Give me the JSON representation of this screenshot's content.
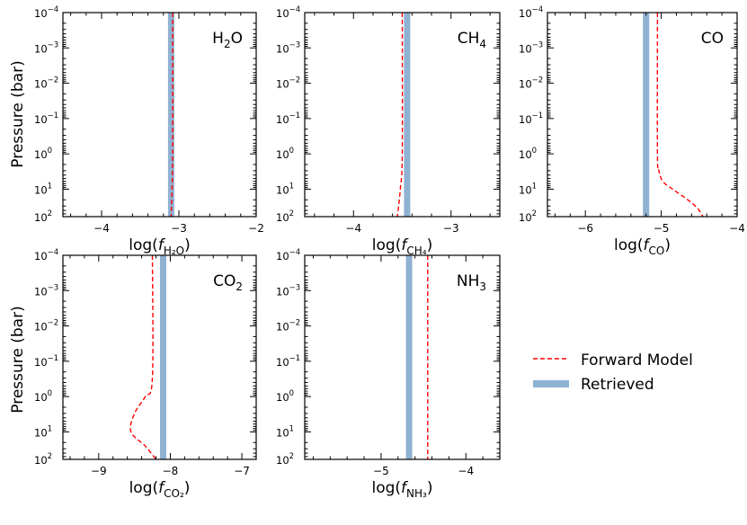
{
  "figure": {
    "ylabel": "Pressure (bar)",
    "legend": {
      "placement": "right",
      "forward_label": "Forward Model",
      "retrieved_label": "Retrieved",
      "forward_color": "#ff0000",
      "retrieved_color": "#8fb1d2"
    }
  },
  "chart_data": [
    {
      "type": "line",
      "species": "H2O",
      "title_main": "H",
      "title_sub": "2",
      "title_tail": "O",
      "xlabel_main": "log(f",
      "xlabel_sub": "H₂O",
      "xlabel_tail": ")",
      "xlim": [
        -4.5,
        -2.0
      ],
      "xticks": [
        -4,
        -3,
        -2
      ],
      "xtick_labels": [
        "−4",
        "−3",
        "−2"
      ],
      "yscale": "log",
      "yinverted": true,
      "ylim": [
        0.0001,
        60
      ],
      "yticks": [
        0.0001,
        0.001,
        0.01,
        0.1,
        1,
        10,
        100
      ],
      "ytick_labels": [
        [
          "10",
          "−4"
        ],
        [
          "10",
          "−3"
        ],
        [
          "10",
          "−2"
        ],
        [
          "10",
          "−1"
        ],
        [
          "10",
          "0"
        ],
        [
          "10",
          "1"
        ],
        [
          "10",
          "2"
        ]
      ],
      "retrieved": -3.1,
      "forward_model": {
        "pressure": [
          0.0001,
          1,
          60
        ],
        "log_abundance": [
          -3.08,
          -3.08,
          -3.1
        ]
      }
    },
    {
      "type": "line",
      "species": "CH4",
      "title_main": "CH",
      "title_sub": "4",
      "title_tail": "",
      "xlabel_main": "log(f",
      "xlabel_sub": "CH₄",
      "xlabel_tail": ")",
      "xlim": [
        -4.5,
        -2.5
      ],
      "xticks": [
        -4,
        -3
      ],
      "xtick_labels": [
        "−4",
        "−3"
      ],
      "yscale": "log",
      "yinverted": true,
      "ylim": [
        0.0001,
        60
      ],
      "yticks": [
        0.0001,
        0.001,
        0.01,
        0.1,
        1,
        10,
        100
      ],
      "ytick_labels": [
        [
          "10",
          "−4"
        ],
        [
          "10",
          "−3"
        ],
        [
          "10",
          "−2"
        ],
        [
          "10",
          "−1"
        ],
        [
          "10",
          "0"
        ],
        [
          "10",
          "1"
        ],
        [
          "10",
          "2"
        ]
      ],
      "retrieved": -3.45,
      "forward_model": {
        "pressure": [
          0.0001,
          1,
          10,
          60
        ],
        "log_abundance": [
          -3.5,
          -3.5,
          -3.52,
          -3.55
        ]
      }
    },
    {
      "type": "line",
      "species": "CO",
      "title_main": "CO",
      "title_sub": "",
      "title_tail": "",
      "xlabel_main": "log(f",
      "xlabel_sub": "CO",
      "xlabel_tail": ")",
      "xlim": [
        -6.5,
        -4.0
      ],
      "xticks": [
        -6,
        -5,
        -4
      ],
      "xtick_labels": [
        "−6",
        "−5",
        "−4"
      ],
      "yscale": "log",
      "yinverted": true,
      "ylim": [
        0.0001,
        60
      ],
      "yticks": [
        0.0001,
        0.001,
        0.01,
        0.1,
        1,
        10,
        100
      ],
      "ytick_labels": [
        [
          "10",
          "−4"
        ],
        [
          "10",
          "−3"
        ],
        [
          "10",
          "−2"
        ],
        [
          "10",
          "−1"
        ],
        [
          "10",
          "0"
        ],
        [
          "10",
          "1"
        ],
        [
          "10",
          "2"
        ]
      ],
      "retrieved": -5.2,
      "forward_model": {
        "pressure": [
          0.0001,
          1,
          3,
          6,
          10,
          20,
          35,
          60
        ],
        "log_abundance": [
          -5.05,
          -5.05,
          -5.03,
          -4.98,
          -4.85,
          -4.65,
          -4.52,
          -4.45
        ]
      }
    },
    {
      "type": "line",
      "species": "CO2",
      "title_main": "CO",
      "title_sub": "2",
      "title_tail": "",
      "xlabel_main": "log(f",
      "xlabel_sub": "CO₂",
      "xlabel_tail": ")",
      "xlim": [
        -9.5,
        -6.8
      ],
      "xticks": [
        -9,
        -8,
        -7
      ],
      "xtick_labels": [
        "−9",
        "−8",
        "−7"
      ],
      "yscale": "log",
      "yinverted": true,
      "ylim": [
        0.0001,
        60
      ],
      "yticks": [
        0.0001,
        0.001,
        0.01,
        0.1,
        1,
        10,
        100
      ],
      "ytick_labels": [
        [
          "10",
          "−4"
        ],
        [
          "10",
          "−3"
        ],
        [
          "10",
          "−2"
        ],
        [
          "10",
          "−1"
        ],
        [
          "10",
          "0"
        ],
        [
          "10",
          "1"
        ],
        [
          "10",
          "2"
        ]
      ],
      "retrieved": -8.1,
      "forward_model": {
        "pressure": [
          0.0001,
          0.3,
          1,
          3,
          10,
          25,
          60
        ],
        "log_abundance": [
          -8.25,
          -8.25,
          -8.35,
          -8.5,
          -8.55,
          -8.35,
          -8.2
        ]
      }
    },
    {
      "type": "line",
      "species": "NH3",
      "title_main": "NH",
      "title_sub": "3",
      "title_tail": "",
      "xlabel_main": "log(f",
      "xlabel_sub": "NH₃",
      "xlabel_tail": ")",
      "xlim": [
        -5.9,
        -3.6
      ],
      "xticks": [
        -5,
        -4
      ],
      "xtick_labels": [
        "−5",
        "−4"
      ],
      "yscale": "log",
      "yinverted": true,
      "ylim": [
        0.0001,
        60
      ],
      "yticks": [
        0.0001,
        0.001,
        0.01,
        0.1,
        1,
        10,
        100
      ],
      "ytick_labels": [
        [
          "10",
          "−4"
        ],
        [
          "10",
          "−3"
        ],
        [
          "10",
          "−2"
        ],
        [
          "10",
          "−1"
        ],
        [
          "10",
          "0"
        ],
        [
          "10",
          "1"
        ],
        [
          "10",
          "2"
        ]
      ],
      "retrieved": -4.67,
      "forward_model": {
        "pressure": [
          0.0001,
          60
        ],
        "log_abundance": [
          -4.45,
          -4.45
        ]
      }
    }
  ]
}
